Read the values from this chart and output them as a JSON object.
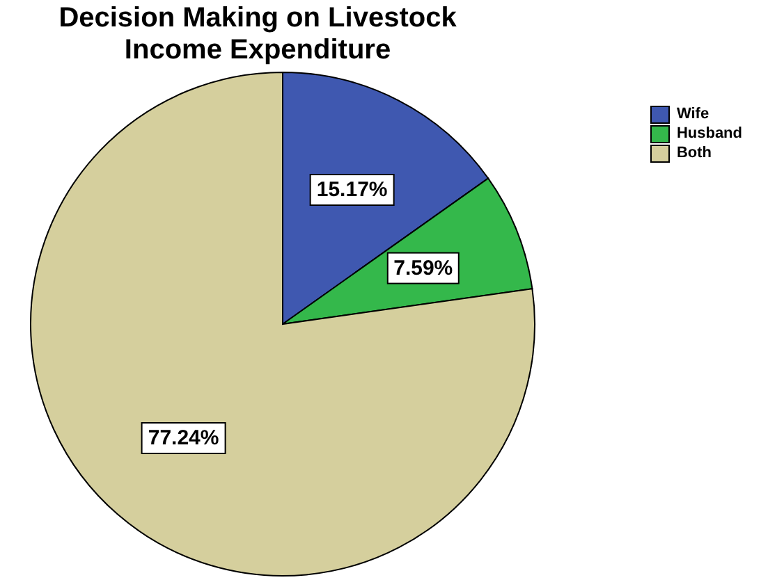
{
  "chart_data": {
    "type": "pie",
    "title": "Decision Making on Livestock Income Expenditure",
    "categories": [
      "Wife",
      "Husband",
      "Both"
    ],
    "values": [
      15.17,
      7.59,
      77.24
    ],
    "value_labels": [
      "15.17%",
      "7.59%",
      "77.24%"
    ],
    "colors": [
      "#3f58b0",
      "#34b84b",
      "#d5cf9d"
    ],
    "legend": "top right"
  }
}
